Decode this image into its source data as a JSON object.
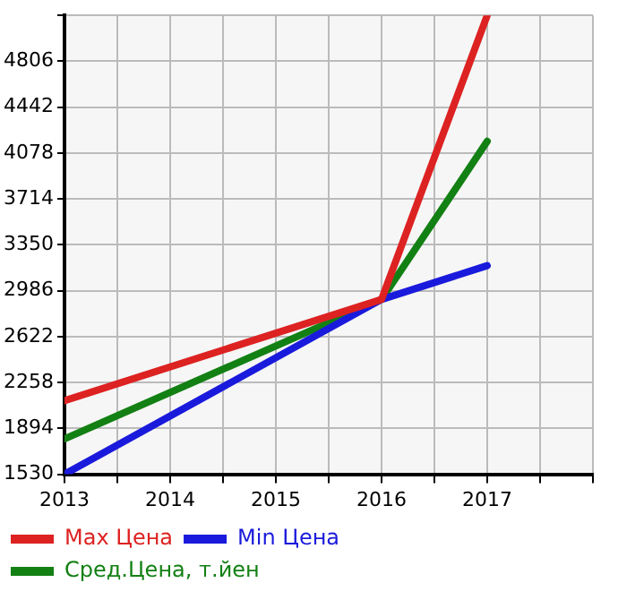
{
  "chart_data": {
    "type": "line",
    "x": [
      2013,
      2016,
      2017
    ],
    "series": [
      {
        "name": "Max Цена",
        "color": "#dd2222",
        "values": [
          2114,
          2917,
          5170
        ]
      },
      {
        "name": "Min Цена",
        "color": "#1a1adc",
        "values": [
          1530,
          2917,
          3185
        ]
      },
      {
        "name": "Сред.Цена, т.йен",
        "color": "#138013",
        "values": [
          1810,
          2917,
          4171
        ]
      }
    ],
    "xlim": [
      2013,
      2018
    ],
    "xticks": [
      2013,
      {
        "value": 2013.5,
        "label": null
      },
      2014,
      {
        "value": 2014.5,
        "label": null
      },
      2015,
      {
        "value": 2015.5,
        "label": null
      },
      2016,
      {
        "value": 2016.5,
        "label": null
      },
      2017,
      {
        "value": 2017.5,
        "label": null
      },
      {
        "value": 2018,
        "label": null
      }
    ],
    "ylim": [
      1530,
      5170
    ],
    "yticks": [
      1530,
      1894,
      2258,
      2622,
      2986,
      3350,
      3714,
      4078,
      4442,
      4806,
      {
        "value": 5170,
        "label": null
      }
    ],
    "grid": true,
    "legend": "bottom",
    "marker": "none",
    "line_style": "solid"
  }
}
